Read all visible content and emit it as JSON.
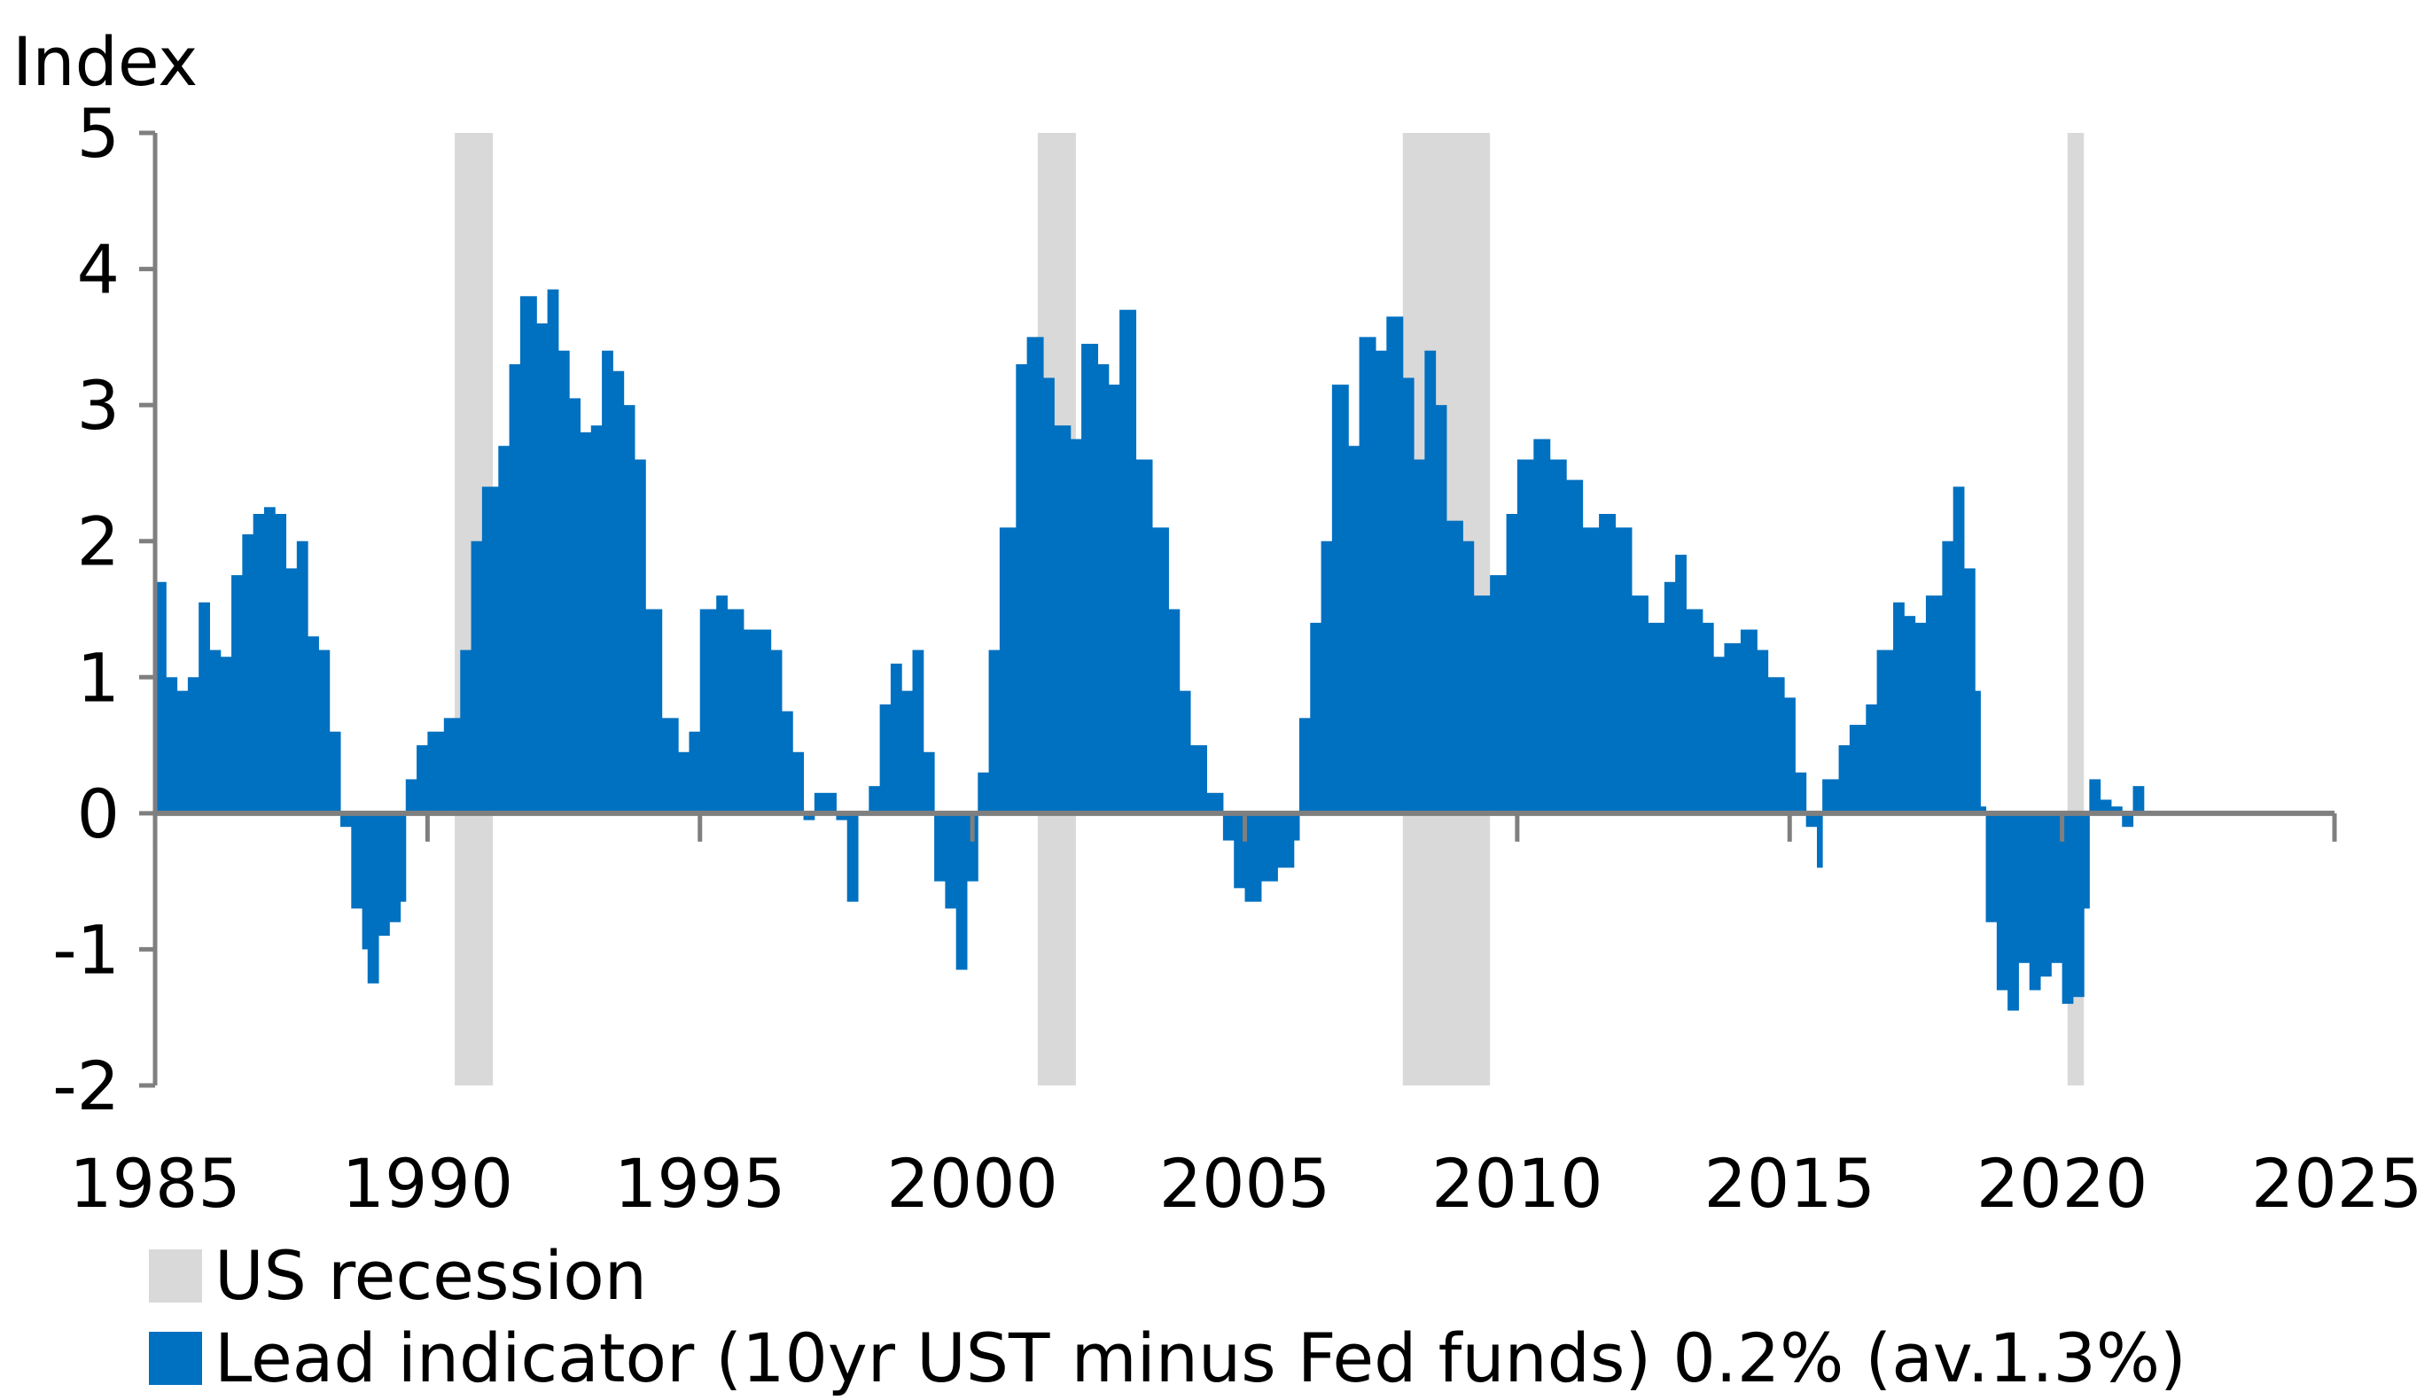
{
  "chart_data": {
    "type": "bar",
    "ylabel": "Index",
    "ylim": [
      -2,
      5
    ],
    "yticks": [
      "5",
      "4",
      "3",
      "2",
      "1",
      "0",
      "-1",
      "-2"
    ],
    "xlim": [
      1985,
      2025
    ],
    "xticks": [
      "1985",
      "1990",
      "1995",
      "2000",
      "2005",
      "2010",
      "2015",
      "2020",
      "2025"
    ],
    "colors": {
      "series": "#0070C0",
      "recession": "#D9D9D9",
      "axis": "#7F7F7F"
    },
    "recessions": [
      [
        1990.5,
        1991.2
      ],
      [
        2001.2,
        2001.9
      ],
      [
        2007.9,
        2009.5
      ],
      [
        2020.1,
        2020.4
      ]
    ],
    "series": [
      {
        "name": "Lead indicator (10yr UST minus Fed funds) 0.2% (av.1.3%)",
        "points": [
          [
            1985.0,
            1.7
          ],
          [
            1985.2,
            1.0
          ],
          [
            1985.4,
            0.9
          ],
          [
            1985.6,
            1.0
          ],
          [
            1985.8,
            1.55
          ],
          [
            1986.0,
            1.2
          ],
          [
            1986.2,
            1.15
          ],
          [
            1986.4,
            1.75
          ],
          [
            1986.6,
            2.05
          ],
          [
            1986.8,
            2.2
          ],
          [
            1987.0,
            2.25
          ],
          [
            1987.2,
            2.2
          ],
          [
            1987.4,
            1.8
          ],
          [
            1987.6,
            2.0
          ],
          [
            1987.8,
            1.3
          ],
          [
            1988.0,
            1.2
          ],
          [
            1988.2,
            0.6
          ],
          [
            1988.4,
            -0.1
          ],
          [
            1988.6,
            -0.7
          ],
          [
            1988.8,
            -1.0
          ],
          [
            1988.9,
            -1.25
          ],
          [
            1989.1,
            -0.9
          ],
          [
            1989.3,
            -0.8
          ],
          [
            1989.5,
            -0.65
          ],
          [
            1989.6,
            0.25
          ],
          [
            1989.8,
            0.5
          ],
          [
            1990.0,
            0.6
          ],
          [
            1990.3,
            0.7
          ],
          [
            1990.6,
            1.2
          ],
          [
            1990.8,
            2.0
          ],
          [
            1991.0,
            2.4
          ],
          [
            1991.3,
            2.7
          ],
          [
            1991.5,
            3.3
          ],
          [
            1991.7,
            3.8
          ],
          [
            1992.0,
            3.6
          ],
          [
            1992.2,
            3.85
          ],
          [
            1992.4,
            3.4
          ],
          [
            1992.6,
            3.05
          ],
          [
            1992.8,
            2.8
          ],
          [
            1993.0,
            2.85
          ],
          [
            1993.2,
            3.4
          ],
          [
            1993.4,
            3.25
          ],
          [
            1993.6,
            3.0
          ],
          [
            1993.8,
            2.6
          ],
          [
            1994.0,
            1.5
          ],
          [
            1994.3,
            0.7
          ],
          [
            1994.6,
            0.45
          ],
          [
            1994.8,
            0.6
          ],
          [
            1995.0,
            1.5
          ],
          [
            1995.3,
            1.6
          ],
          [
            1995.5,
            1.5
          ],
          [
            1995.8,
            1.35
          ],
          [
            1996.0,
            1.35
          ],
          [
            1996.3,
            1.2
          ],
          [
            1996.5,
            0.75
          ],
          [
            1996.7,
            0.45
          ],
          [
            1996.9,
            -0.05
          ],
          [
            1997.1,
            0.15
          ],
          [
            1997.3,
            0.15
          ],
          [
            1997.5,
            -0.05
          ],
          [
            1997.7,
            -0.65
          ],
          [
            1997.9,
            0.0
          ],
          [
            1998.1,
            0.2
          ],
          [
            1998.3,
            0.8
          ],
          [
            1998.5,
            1.1
          ],
          [
            1998.7,
            0.9
          ],
          [
            1998.9,
            1.2
          ],
          [
            1999.1,
            0.45
          ],
          [
            1999.3,
            -0.5
          ],
          [
            1999.5,
            -0.7
          ],
          [
            1999.7,
            -1.15
          ],
          [
            1999.9,
            -0.5
          ],
          [
            2000.1,
            0.3
          ],
          [
            2000.3,
            1.2
          ],
          [
            2000.5,
            2.1
          ],
          [
            2000.8,
            3.3
          ],
          [
            2001.0,
            3.5
          ],
          [
            2001.3,
            3.2
          ],
          [
            2001.5,
            2.85
          ],
          [
            2001.8,
            2.75
          ],
          [
            2002.0,
            3.45
          ],
          [
            2002.3,
            3.3
          ],
          [
            2002.5,
            3.15
          ],
          [
            2002.7,
            3.7
          ],
          [
            2003.0,
            2.6
          ],
          [
            2003.3,
            2.1
          ],
          [
            2003.6,
            1.5
          ],
          [
            2003.8,
            0.9
          ],
          [
            2004.0,
            0.5
          ],
          [
            2004.3,
            0.15
          ],
          [
            2004.6,
            -0.2
          ],
          [
            2004.8,
            -0.55
          ],
          [
            2005.0,
            -0.65
          ],
          [
            2005.3,
            -0.5
          ],
          [
            2005.6,
            -0.4
          ],
          [
            2005.9,
            -0.2
          ],
          [
            2006.0,
            0.7
          ],
          [
            2006.2,
            1.4
          ],
          [
            2006.4,
            2.0
          ],
          [
            2006.6,
            3.15
          ],
          [
            2006.9,
            2.7
          ],
          [
            2007.1,
            3.5
          ],
          [
            2007.4,
            3.4
          ],
          [
            2007.6,
            3.65
          ],
          [
            2007.9,
            3.2
          ],
          [
            2008.1,
            2.6
          ],
          [
            2008.3,
            3.4
          ],
          [
            2008.5,
            3.0
          ],
          [
            2008.7,
            2.15
          ],
          [
            2009.0,
            2.0
          ],
          [
            2009.2,
            1.6
          ],
          [
            2009.5,
            1.75
          ],
          [
            2009.8,
            2.2
          ],
          [
            2010.0,
            2.6
          ],
          [
            2010.3,
            2.75
          ],
          [
            2010.6,
            2.6
          ],
          [
            2010.9,
            2.45
          ],
          [
            2011.2,
            2.1
          ],
          [
            2011.5,
            2.2
          ],
          [
            2011.8,
            2.1
          ],
          [
            2012.1,
            1.6
          ],
          [
            2012.4,
            1.4
          ],
          [
            2012.7,
            1.7
          ],
          [
            2012.9,
            1.9
          ],
          [
            2013.1,
            1.5
          ],
          [
            2013.4,
            1.4
          ],
          [
            2013.6,
            1.15
          ],
          [
            2013.8,
            1.25
          ],
          [
            2014.1,
            1.35
          ],
          [
            2014.4,
            1.2
          ],
          [
            2014.6,
            1.0
          ],
          [
            2014.9,
            0.85
          ],
          [
            2015.1,
            0.3
          ],
          [
            2015.3,
            -0.1
          ],
          [
            2015.5,
            -0.4
          ],
          [
            2015.6,
            0.25
          ],
          [
            2015.9,
            0.5
          ],
          [
            2016.1,
            0.65
          ],
          [
            2016.4,
            0.8
          ],
          [
            2016.6,
            1.2
          ],
          [
            2016.9,
            1.55
          ],
          [
            2017.1,
            1.45
          ],
          [
            2017.3,
            1.4
          ],
          [
            2017.5,
            1.6
          ],
          [
            2017.8,
            2.0
          ],
          [
            2018.0,
            2.4
          ],
          [
            2018.2,
            1.8
          ],
          [
            2018.4,
            0.9
          ],
          [
            2018.5,
            0.05
          ],
          [
            2018.6,
            -0.8
          ],
          [
            2018.8,
            -1.3
          ],
          [
            2019.0,
            -1.45
          ],
          [
            2019.2,
            -1.1
          ],
          [
            2019.4,
            -1.3
          ],
          [
            2019.6,
            -1.2
          ],
          [
            2019.8,
            -1.1
          ],
          [
            2020.0,
            -1.4
          ],
          [
            2020.2,
            -1.35
          ],
          [
            2020.4,
            -0.7
          ],
          [
            2020.5,
            0.25
          ],
          [
            2020.7,
            0.1
          ],
          [
            2020.9,
            0.05
          ],
          [
            2021.1,
            -0.1
          ],
          [
            2021.3,
            0.2
          ]
        ]
      }
    ],
    "legend": [
      {
        "label": "US recession",
        "color": "#D9D9D9"
      },
      {
        "label": "Lead indicator (10yr UST minus Fed funds) 0.2% (av.1.3%)",
        "color": "#0070C0"
      }
    ]
  }
}
